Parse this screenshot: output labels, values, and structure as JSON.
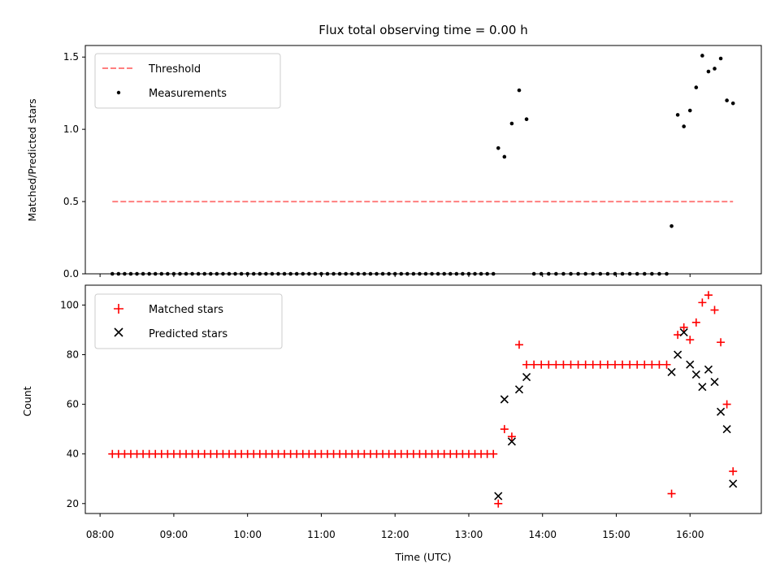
{
  "chart_data": [
    {
      "type": "scatter",
      "title": "Flux total observing time = 0.00 h",
      "ylabel": "Matched/Predicted stars",
      "xlabel": "",
      "ylim": [
        0,
        1.58
      ],
      "xlim": [
        "07:48",
        "16:58"
      ],
      "yticks": [
        "0.0",
        "0.5",
        "1.0",
        "1.5"
      ],
      "legend_position": "upper-left",
      "series": [
        {
          "name": "Threshold",
          "style": "dashed-line",
          "color": "#ff7f7f",
          "x": [
            "08:10",
            "16:35"
          ],
          "y": [
            0.5,
            0.5
          ]
        },
        {
          "name": "Measurements",
          "style": "dots",
          "color": "#000000",
          "x": [
            "08:10",
            "08:15",
            "08:20",
            "08:25",
            "08:30",
            "08:35",
            "08:40",
            "08:45",
            "08:50",
            "08:55",
            "09:00",
            "09:05",
            "09:10",
            "09:15",
            "09:20",
            "09:25",
            "09:30",
            "09:35",
            "09:40",
            "09:45",
            "09:50",
            "09:55",
            "10:00",
            "10:05",
            "10:10",
            "10:15",
            "10:20",
            "10:25",
            "10:30",
            "10:35",
            "10:40",
            "10:45",
            "10:50",
            "10:55",
            "11:00",
            "11:05",
            "11:10",
            "11:15",
            "11:20",
            "11:25",
            "11:30",
            "11:35",
            "11:40",
            "11:45",
            "11:50",
            "11:55",
            "12:00",
            "12:05",
            "12:10",
            "12:15",
            "12:20",
            "12:25",
            "12:30",
            "12:35",
            "12:40",
            "12:45",
            "12:50",
            "12:55",
            "13:00",
            "13:05",
            "13:10",
            "13:15",
            "13:20",
            "13:24",
            "13:29",
            "13:35",
            "13:41",
            "13:47",
            "13:53",
            "13:59",
            "14:05",
            "14:11",
            "14:17",
            "14:23",
            "14:29",
            "14:35",
            "14:41",
            "14:47",
            "14:53",
            "14:59",
            "15:05",
            "15:11",
            "15:17",
            "15:23",
            "15:29",
            "15:35",
            "15:41",
            "15:45",
            "15:50",
            "15:55",
            "16:00",
            "16:05",
            "16:10",
            "16:15",
            "16:20",
            "16:25",
            "16:30",
            "16:35"
          ],
          "y": [
            0,
            0,
            0,
            0,
            0,
            0,
            0,
            0,
            0,
            0,
            0,
            0,
            0,
            0,
            0,
            0,
            0,
            0,
            0,
            0,
            0,
            0,
            0,
            0,
            0,
            0,
            0,
            0,
            0,
            0,
            0,
            0,
            0,
            0,
            0,
            0,
            0,
            0,
            0,
            0,
            0,
            0,
            0,
            0,
            0,
            0,
            0,
            0,
            0,
            0,
            0,
            0,
            0,
            0,
            0,
            0,
            0,
            0,
            0,
            0,
            0,
            0,
            0,
            0.87,
            0.81,
            1.04,
            1.27,
            1.07,
            0,
            0,
            0,
            0,
            0,
            0,
            0,
            0,
            0,
            0,
            0,
            0,
            0,
            0,
            0,
            0,
            0,
            0,
            0,
            0.33,
            1.1,
            1.02,
            1.13,
            1.29,
            1.51,
            1.4,
            1.42,
            1.49,
            1.2,
            1.18
          ]
        }
      ]
    },
    {
      "type": "scatter",
      "title": "",
      "ylabel": "Count",
      "xlabel": "Time (UTC)",
      "ylim": [
        16,
        108
      ],
      "xlim": [
        "07:48",
        "16:58"
      ],
      "yticks": [
        "20",
        "40",
        "60",
        "80",
        "100"
      ],
      "xticks": [
        "08:00",
        "09:00",
        "10:00",
        "11:00",
        "12:00",
        "13:00",
        "14:00",
        "15:00",
        "16:00"
      ],
      "legend_position": "upper-left",
      "series": [
        {
          "name": "Matched stars",
          "style": "plus",
          "color": "#ff0000",
          "x": [
            "08:10",
            "08:15",
            "08:20",
            "08:25",
            "08:30",
            "08:35",
            "08:40",
            "08:45",
            "08:50",
            "08:55",
            "09:00",
            "09:05",
            "09:10",
            "09:15",
            "09:20",
            "09:25",
            "09:30",
            "09:35",
            "09:40",
            "09:45",
            "09:50",
            "09:55",
            "10:00",
            "10:05",
            "10:10",
            "10:15",
            "10:20",
            "10:25",
            "10:30",
            "10:35",
            "10:40",
            "10:45",
            "10:50",
            "10:55",
            "11:00",
            "11:05",
            "11:10",
            "11:15",
            "11:20",
            "11:25",
            "11:30",
            "11:35",
            "11:40",
            "11:45",
            "11:50",
            "11:55",
            "12:00",
            "12:05",
            "12:10",
            "12:15",
            "12:20",
            "12:25",
            "12:30",
            "12:35",
            "12:40",
            "12:45",
            "12:50",
            "12:55",
            "13:00",
            "13:05",
            "13:10",
            "13:15",
            "13:20",
            "13:24",
            "13:29",
            "13:35",
            "13:41",
            "13:47",
            "13:53",
            "13:59",
            "14:05",
            "14:11",
            "14:17",
            "14:23",
            "14:29",
            "14:35",
            "14:41",
            "14:47",
            "14:53",
            "14:59",
            "15:05",
            "15:11",
            "15:17",
            "15:23",
            "15:29",
            "15:35",
            "15:41",
            "15:45",
            "15:50",
            "15:55",
            "16:00",
            "16:05",
            "16:10",
            "16:15",
            "16:20",
            "16:25",
            "16:30",
            "16:35"
          ],
          "y": [
            40,
            40,
            40,
            40,
            40,
            40,
            40,
            40,
            40,
            40,
            40,
            40,
            40,
            40,
            40,
            40,
            40,
            40,
            40,
            40,
            40,
            40,
            40,
            40,
            40,
            40,
            40,
            40,
            40,
            40,
            40,
            40,
            40,
            40,
            40,
            40,
            40,
            40,
            40,
            40,
            40,
            40,
            40,
            40,
            40,
            40,
            40,
            40,
            40,
            40,
            40,
            40,
            40,
            40,
            40,
            40,
            40,
            40,
            40,
            40,
            40,
            40,
            40,
            20,
            50,
            47,
            84,
            76,
            76,
            76,
            76,
            76,
            76,
            76,
            76,
            76,
            76,
            76,
            76,
            76,
            76,
            76,
            76,
            76,
            76,
            76,
            76,
            24,
            88,
            91,
            86,
            93,
            101,
            104,
            98,
            85,
            60,
            33
          ]
        },
        {
          "name": "Predicted stars",
          "style": "x",
          "color": "#000000",
          "x": [
            "13:24",
            "13:29",
            "13:35",
            "13:41",
            "13:47",
            "15:45",
            "15:50",
            "15:55",
            "16:00",
            "16:05",
            "16:10",
            "16:15",
            "16:20",
            "16:25",
            "16:30",
            "16:35"
          ],
          "y": [
            23,
            62,
            45,
            66,
            71,
            73,
            80,
            89,
            76,
            72,
            67,
            74,
            69,
            57,
            50,
            28
          ]
        }
      ]
    }
  ]
}
